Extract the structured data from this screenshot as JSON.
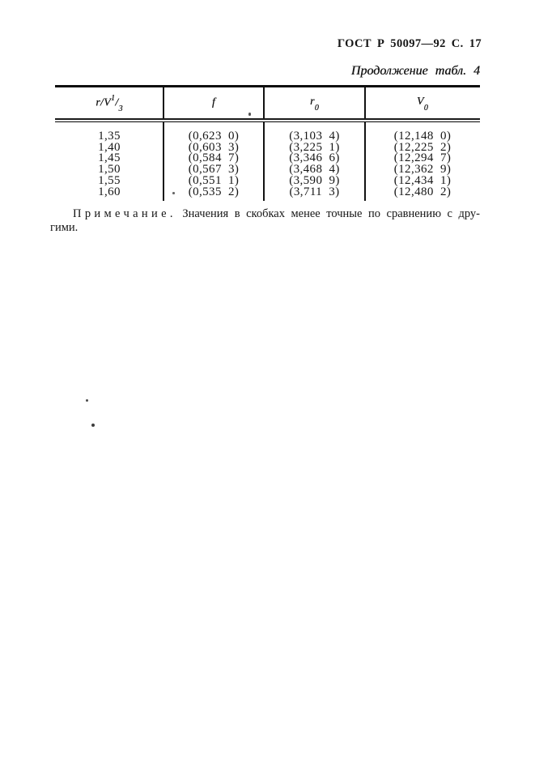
{
  "header": {
    "doc_ref": "ГОСТ Р 50097—92 С. 17",
    "table_caption": "Продолжение табл. 4"
  },
  "table": {
    "columns": [
      {
        "base": "r/V",
        "sup": "1",
        "slash": "/",
        "sub": "3"
      },
      {
        "base": "f"
      },
      {
        "base": "r",
        "sub": "0"
      },
      {
        "base": "V",
        "sub": "0"
      }
    ],
    "rows": [
      [
        "1,35",
        "(0,623 0)",
        "(3,103 4)",
        "(12,148 0)"
      ],
      [
        "1,40",
        "(0,603 3)",
        "(3,225 1)",
        "(12,225 2)"
      ],
      [
        "1,45",
        "(0,584 7)",
        "(3,346 6)",
        "(12,294 7)"
      ],
      [
        "1,50",
        "(0,567 3)",
        "(3,468 4)",
        "(12,362 9)"
      ],
      [
        "1,55",
        "(0,551 1)",
        "(3,590 9)",
        "(12,434 1)"
      ],
      [
        "1,60",
        "(0,535 2)",
        "(3,711 3)",
        "(12,480 2)"
      ]
    ]
  },
  "note": {
    "label": "Примечание.",
    "line1": "Значения в скобках менее точные по сравнению с дру-",
    "line2": "гими."
  },
  "colors": {
    "paper": "#ffffff",
    "ink": "#161616",
    "rule": "#0e0e0e"
  }
}
